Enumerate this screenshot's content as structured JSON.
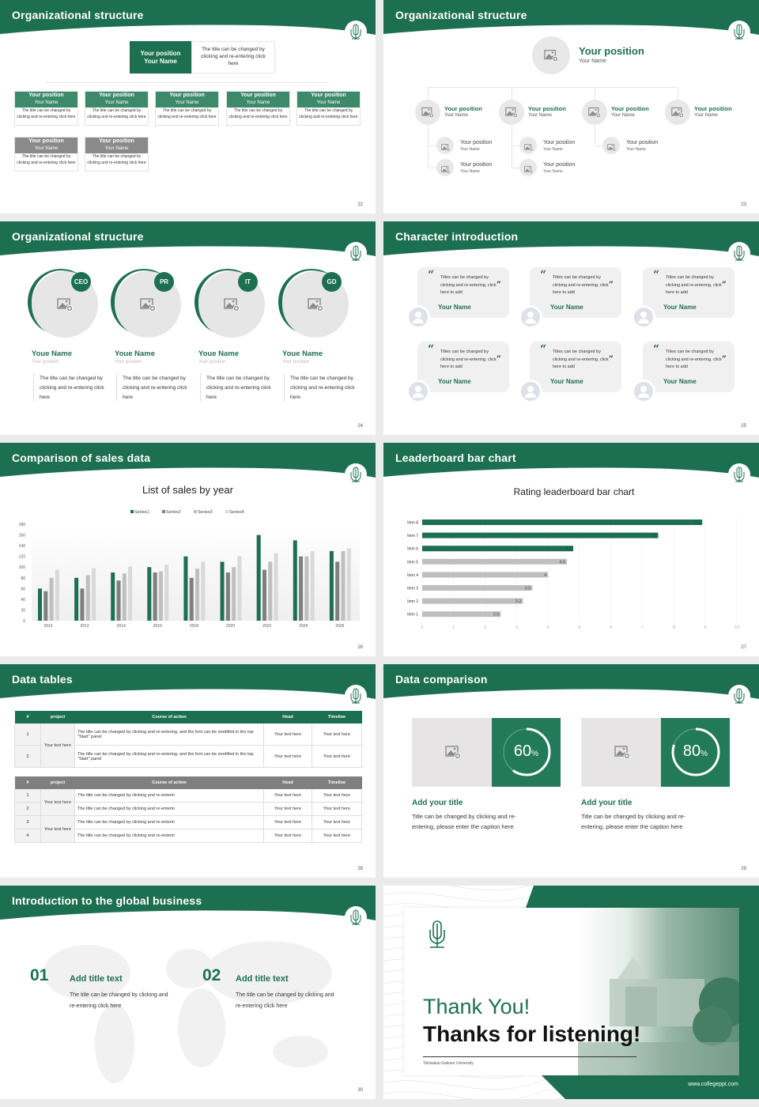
{
  "colors": {
    "brand": "#1d6f52",
    "gray": "#7f7f7f",
    "light_gray": "#c0c0c0",
    "lighter_gray": "#d9d9d9"
  },
  "slide_org_boxes": {
    "title": "Organizational structure",
    "page": "22",
    "top": {
      "position": "Your position",
      "name": "Your Name",
      "desc": "The title can be changed by clicking and re-entering click here"
    },
    "row_green": [
      {
        "position": "Your position",
        "name": "Your Name",
        "desc": "The title can be changed by clicking and re-entering click here"
      },
      {
        "position": "Your position",
        "name": "Your Name",
        "desc": "The title can be changed by clicking and re-entering click here"
      },
      {
        "position": "Your position",
        "name": "Your Name",
        "desc": "The title can be changed by clicking and re-entering click here"
      },
      {
        "position": "Your position",
        "name": "Your Name",
        "desc": "The title can be changed by clicking and re-entering click here"
      },
      {
        "position": "Your position",
        "name": "Your Name",
        "desc": "The title can be changed by clicking and re-entering click here"
      }
    ],
    "row_gray": [
      {
        "position": "Your position",
        "name": "Your Name",
        "desc": "The title can be changed by clicking and re-entering click here"
      },
      {
        "position": "Your position",
        "name": "Your Name",
        "desc": "The title can be changed by clicking and re-entering click here"
      }
    ]
  },
  "slide_org_circles": {
    "title": "Organizational structure",
    "page": "23",
    "top": {
      "position": "Your position",
      "name": "Your Name"
    },
    "level2": [
      {
        "position": "Your position",
        "name": "Your Name"
      },
      {
        "position": "Your position",
        "name": "Your Name"
      },
      {
        "position": "Your position",
        "name": "Your Name"
      },
      {
        "position": "Your position",
        "name": "Your Name"
      }
    ],
    "level3": [
      {
        "position": "Your position",
        "name": "Your Name"
      },
      {
        "position": "Your position",
        "name": "Your Name"
      },
      {
        "position": "Your position",
        "name": "Your Name"
      },
      {
        "position": "Your position",
        "name": "Your Name"
      },
      {
        "position": "Your position",
        "name": "Your Name"
      }
    ]
  },
  "slide_org_team": {
    "title": "Organizational structure",
    "page": "24",
    "members": [
      {
        "badge": "CEO",
        "name": "Youe Name",
        "position": "Your position",
        "desc": "The title can be changed by clicking and re-entering click here"
      },
      {
        "badge": "PR",
        "name": "Youe Name",
        "position": "Your position",
        "desc": "The title can be changed by clicking and re-entering click here"
      },
      {
        "badge": "IT",
        "name": "Youe Name",
        "position": "Your position",
        "desc": "The title can be changed by clicking and re-entering click here"
      },
      {
        "badge": "GD",
        "name": "Youe Name",
        "position": "Your position",
        "desc": "The title can be changed by clicking and re-entering click here"
      }
    ]
  },
  "slide_characters": {
    "title": "Character introduction",
    "page": "25",
    "cards": [
      {
        "quote": "Titles can be changed by clicking and re-entering, click here to add",
        "name": "Your Name"
      },
      {
        "quote": "Titles can be changed by clicking and re-entering, click here to add",
        "name": "Your Name"
      },
      {
        "quote": "Titles can be changed by clicking and re-entering, click here to add",
        "name": "Your Name"
      },
      {
        "quote": "Titles can be changed by clicking and re-entering, click here to add",
        "name": "Your Name"
      },
      {
        "quote": "Titles can be changed by clicking and re-entering, click here to add",
        "name": "Your Name"
      },
      {
        "quote": "Titles can be changed by clicking and re-entering, click here to add",
        "name": "Your Name"
      }
    ]
  },
  "slide_sales": {
    "title": "Comparison of sales data",
    "page": "26"
  },
  "slide_leaderboard": {
    "title": "Leaderboard bar chart",
    "page": "27"
  },
  "chart_data": [
    {
      "type": "bar",
      "title": "List of sales by year",
      "xlabel": "",
      "ylabel": "",
      "categories": [
        "2010",
        "2012",
        "2014",
        "2016",
        "2018",
        "2020",
        "2022",
        "2024",
        "2026"
      ],
      "ylim": [
        0,
        180
      ],
      "yticks": [
        "0",
        "20",
        "40",
        "60",
        "80",
        "100",
        "120",
        "140",
        "160",
        "180"
      ],
      "grid": false,
      "legend": "top",
      "series": [
        {
          "name": "Series1",
          "color": "#1d6f52",
          "values": [
            60,
            80,
            90,
            100,
            120,
            110,
            160,
            150,
            130
          ]
        },
        {
          "name": "Series2",
          "color": "#7f7f7f",
          "values": [
            55,
            60,
            75,
            90,
            80,
            90,
            95,
            120,
            110
          ]
        },
        {
          "name": "Series3",
          "color": "#bfbfbf",
          "values": [
            80,
            85,
            88,
            92,
            97,
            100,
            110,
            120,
            130
          ]
        },
        {
          "name": "Series4",
          "color": "#d9d9d9",
          "values": [
            95,
            98,
            101,
            104,
            110,
            120,
            126,
            130,
            135
          ]
        }
      ]
    },
    {
      "type": "bar",
      "orientation": "horizontal",
      "title": "Rating leaderboard bar chart",
      "xlabel": "",
      "ylabel": "",
      "categories": [
        "Item 8",
        "Item 7",
        "Item 6",
        "Item 5",
        "Item 4",
        "Item 3",
        "Item 2",
        "Item 1"
      ],
      "values": [
        8.9,
        7.5,
        4.8,
        4.6,
        4,
        3.5,
        3.2,
        2.5
      ],
      "labels": [
        "8.9",
        "7.5",
        "4.8",
        "4.6",
        "4",
        "3.5",
        "3.2",
        "2.5"
      ],
      "highlight_top": 3,
      "xlim": [
        0,
        10
      ],
      "xticks": [
        "0",
        "1",
        "2",
        "3",
        "4",
        "5",
        "6",
        "7",
        "8",
        "9",
        "10"
      ],
      "grid": true
    }
  ],
  "slide_tables": {
    "title": "Data tables",
    "page": "28",
    "headers": [
      "#",
      "project",
      "Course of action",
      "Head",
      "Timeline"
    ],
    "table1": {
      "project": "Your text here",
      "rows": [
        {
          "n": "1",
          "action": "The title can be changed by clicking and re-entering, and the font can be modified in the top \"Start\" panel",
          "head": "Your text here",
          "timeline": "Your text here"
        },
        {
          "n": "2",
          "action": "The title can be changed by clicking and re-entering, and the font can be modified in the top \"Start\" panel",
          "head": "Your text here",
          "timeline": "Your text here"
        }
      ]
    },
    "table2": {
      "projects": [
        "Your text here",
        "Your text here"
      ],
      "rows": [
        {
          "n": "1",
          "action": "The title can be changed by clicking and re-enterin",
          "head": "Your text here",
          "timeline": "Your text here"
        },
        {
          "n": "2",
          "action": "The title can be changed by clicking and re-enterin",
          "head": "Your text here",
          "timeline": "Your text here"
        },
        {
          "n": "3",
          "action": "The title can be changed by clicking and re-enterin",
          "head": "Your text here",
          "timeline": "Your text here"
        },
        {
          "n": "4",
          "action": "The title can be changed by clicking and re-enterin",
          "head": "Your text here",
          "timeline": "Your text here"
        }
      ]
    }
  },
  "slide_comparison": {
    "title": "Data comparison",
    "page": "29",
    "items": [
      {
        "percent": 60,
        "value": "60",
        "unit": "%",
        "title": "Add your title",
        "desc": "Title can be changed by clicking and re-entering, please enter the caption here"
      },
      {
        "percent": 80,
        "value": "80",
        "unit": "%",
        "title": "Add your title",
        "desc": "Title can be changed by clicking and re-entering, please enter the caption here"
      }
    ]
  },
  "slide_global": {
    "title": "Introduction to the global business",
    "page": "30",
    "items": [
      {
        "num": "01",
        "title": "Add title text",
        "desc": "The title can be changed by clicking and re-entering click here"
      },
      {
        "num": "02",
        "title": "Add title text",
        "desc": "The title can be changed by clicking and re-entering click here"
      }
    ]
  },
  "slide_thanks": {
    "line1": "Thank You!",
    "line2": "Thanks for listening!",
    "university": "Tokiwakai Gakuen University",
    "website": "www.collegeppt.com"
  }
}
